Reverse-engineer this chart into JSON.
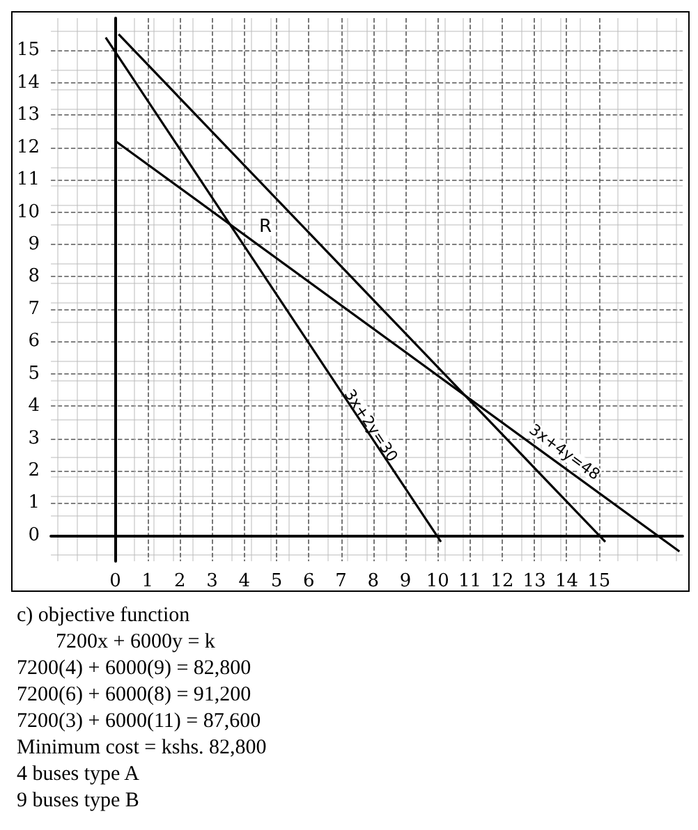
{
  "chart_data": {
    "type": "line",
    "series": [
      {
        "name": "3x+2y=30",
        "color": "#000000",
        "x": [
          -0.3,
          10.1
        ],
        "values": [
          15.4,
          -0.2
        ]
      },
      {
        "name": "3x+4y=48",
        "color": "#000000",
        "x": [
          0,
          17.5
        ],
        "values": [
          12.2,
          -0.5
        ]
      },
      {
        "color": "#000000",
        "x": [
          0.1,
          15.2
        ],
        "values": [
          15.5,
          -0.2
        ]
      }
    ],
    "xlim": [
      -2,
      17.6
    ],
    "ylim": [
      -0.8,
      16
    ],
    "xticks": [
      0,
      1,
      2,
      3,
      4,
      5,
      6,
      7,
      8,
      9,
      10,
      11,
      12,
      13,
      14,
      15
    ],
    "yticks": [
      0,
      1,
      2,
      3,
      4,
      5,
      6,
      7,
      8,
      9,
      10,
      11,
      12,
      13,
      14,
      15
    ],
    "grid": true,
    "marker": "none",
    "line_style": "solid",
    "legend": false,
    "annotations": [
      "R",
      "c) objective function",
      "7200x + 6000y = k",
      "7200(4) + 6000(9) = 82,800",
      "7200(6) + 6000(8) = 91,200",
      "7200(3) + 6000(11) = 87,600",
      "Minimum  cost = kshs. 82,800",
      "4 buses type A",
      "9 buses type B"
    ]
  }
}
